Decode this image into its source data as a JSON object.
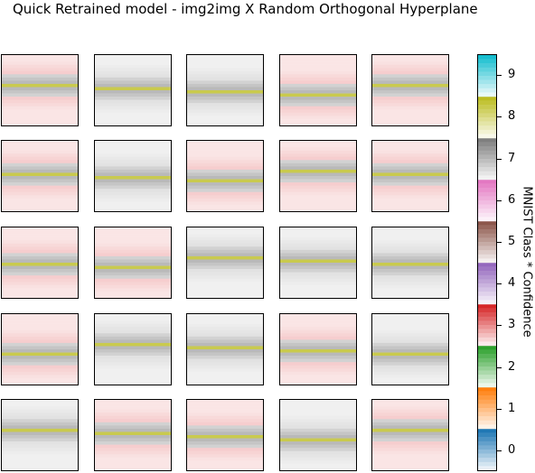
{
  "title": "Quick Retrained model - img2img X Random Orthogonal Hyperplane",
  "chart_data": {
    "type": "heatmap",
    "rows": 5,
    "cols": 5,
    "colorbar": {
      "label": "MNIST Class * Confidence",
      "ticks": [
        "0",
        "1",
        "2",
        "3",
        "4",
        "5",
        "6",
        "7",
        "8",
        "9"
      ],
      "range": [
        -0.5,
        9.5
      ],
      "class_colors": [
        "#1f77b4",
        "#ff7f0e",
        "#2ca02c",
        "#d62728",
        "#9467bd",
        "#8c564b",
        "#e377c2",
        "#7f7f7f",
        "#bcbd22",
        "#17becf"
      ]
    },
    "panels_dominant_classes": [
      [
        3,
        7,
        7,
        3,
        3
      ],
      [
        3,
        7,
        3,
        3,
        3
      ],
      [
        3,
        3,
        7,
        7,
        7
      ],
      [
        3,
        7,
        7,
        3,
        7
      ],
      [
        7,
        3,
        3,
        7,
        3
      ]
    ]
  }
}
